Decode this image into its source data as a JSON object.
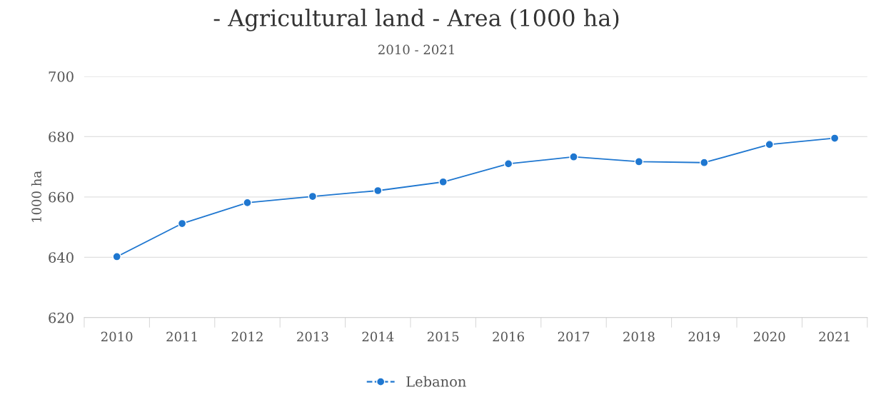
{
  "chart_data": {
    "type": "line",
    "title": "- Agricultural land - Area (1000 ha)",
    "subtitle": "2010 - 2021",
    "ylabel": "1000 ha",
    "categories": [
      "2010",
      "2011",
      "2012",
      "2013",
      "2014",
      "2015",
      "2016",
      "2017",
      "2018",
      "2019",
      "2020",
      "2021"
    ],
    "series": [
      {
        "name": "Lebanon",
        "color": "#1f77d0",
        "values": [
          640.2,
          651.2,
          658.1,
          660.2,
          662.1,
          665.0,
          671.0,
          673.3,
          671.7,
          671.4,
          677.4,
          679.5
        ]
      }
    ],
    "ylim": [
      620,
      700
    ],
    "yticks": [
      620,
      640,
      660,
      680,
      700
    ],
    "grid": "y",
    "legend": "bottom",
    "marker": "circle",
    "line_style": "solid"
  }
}
